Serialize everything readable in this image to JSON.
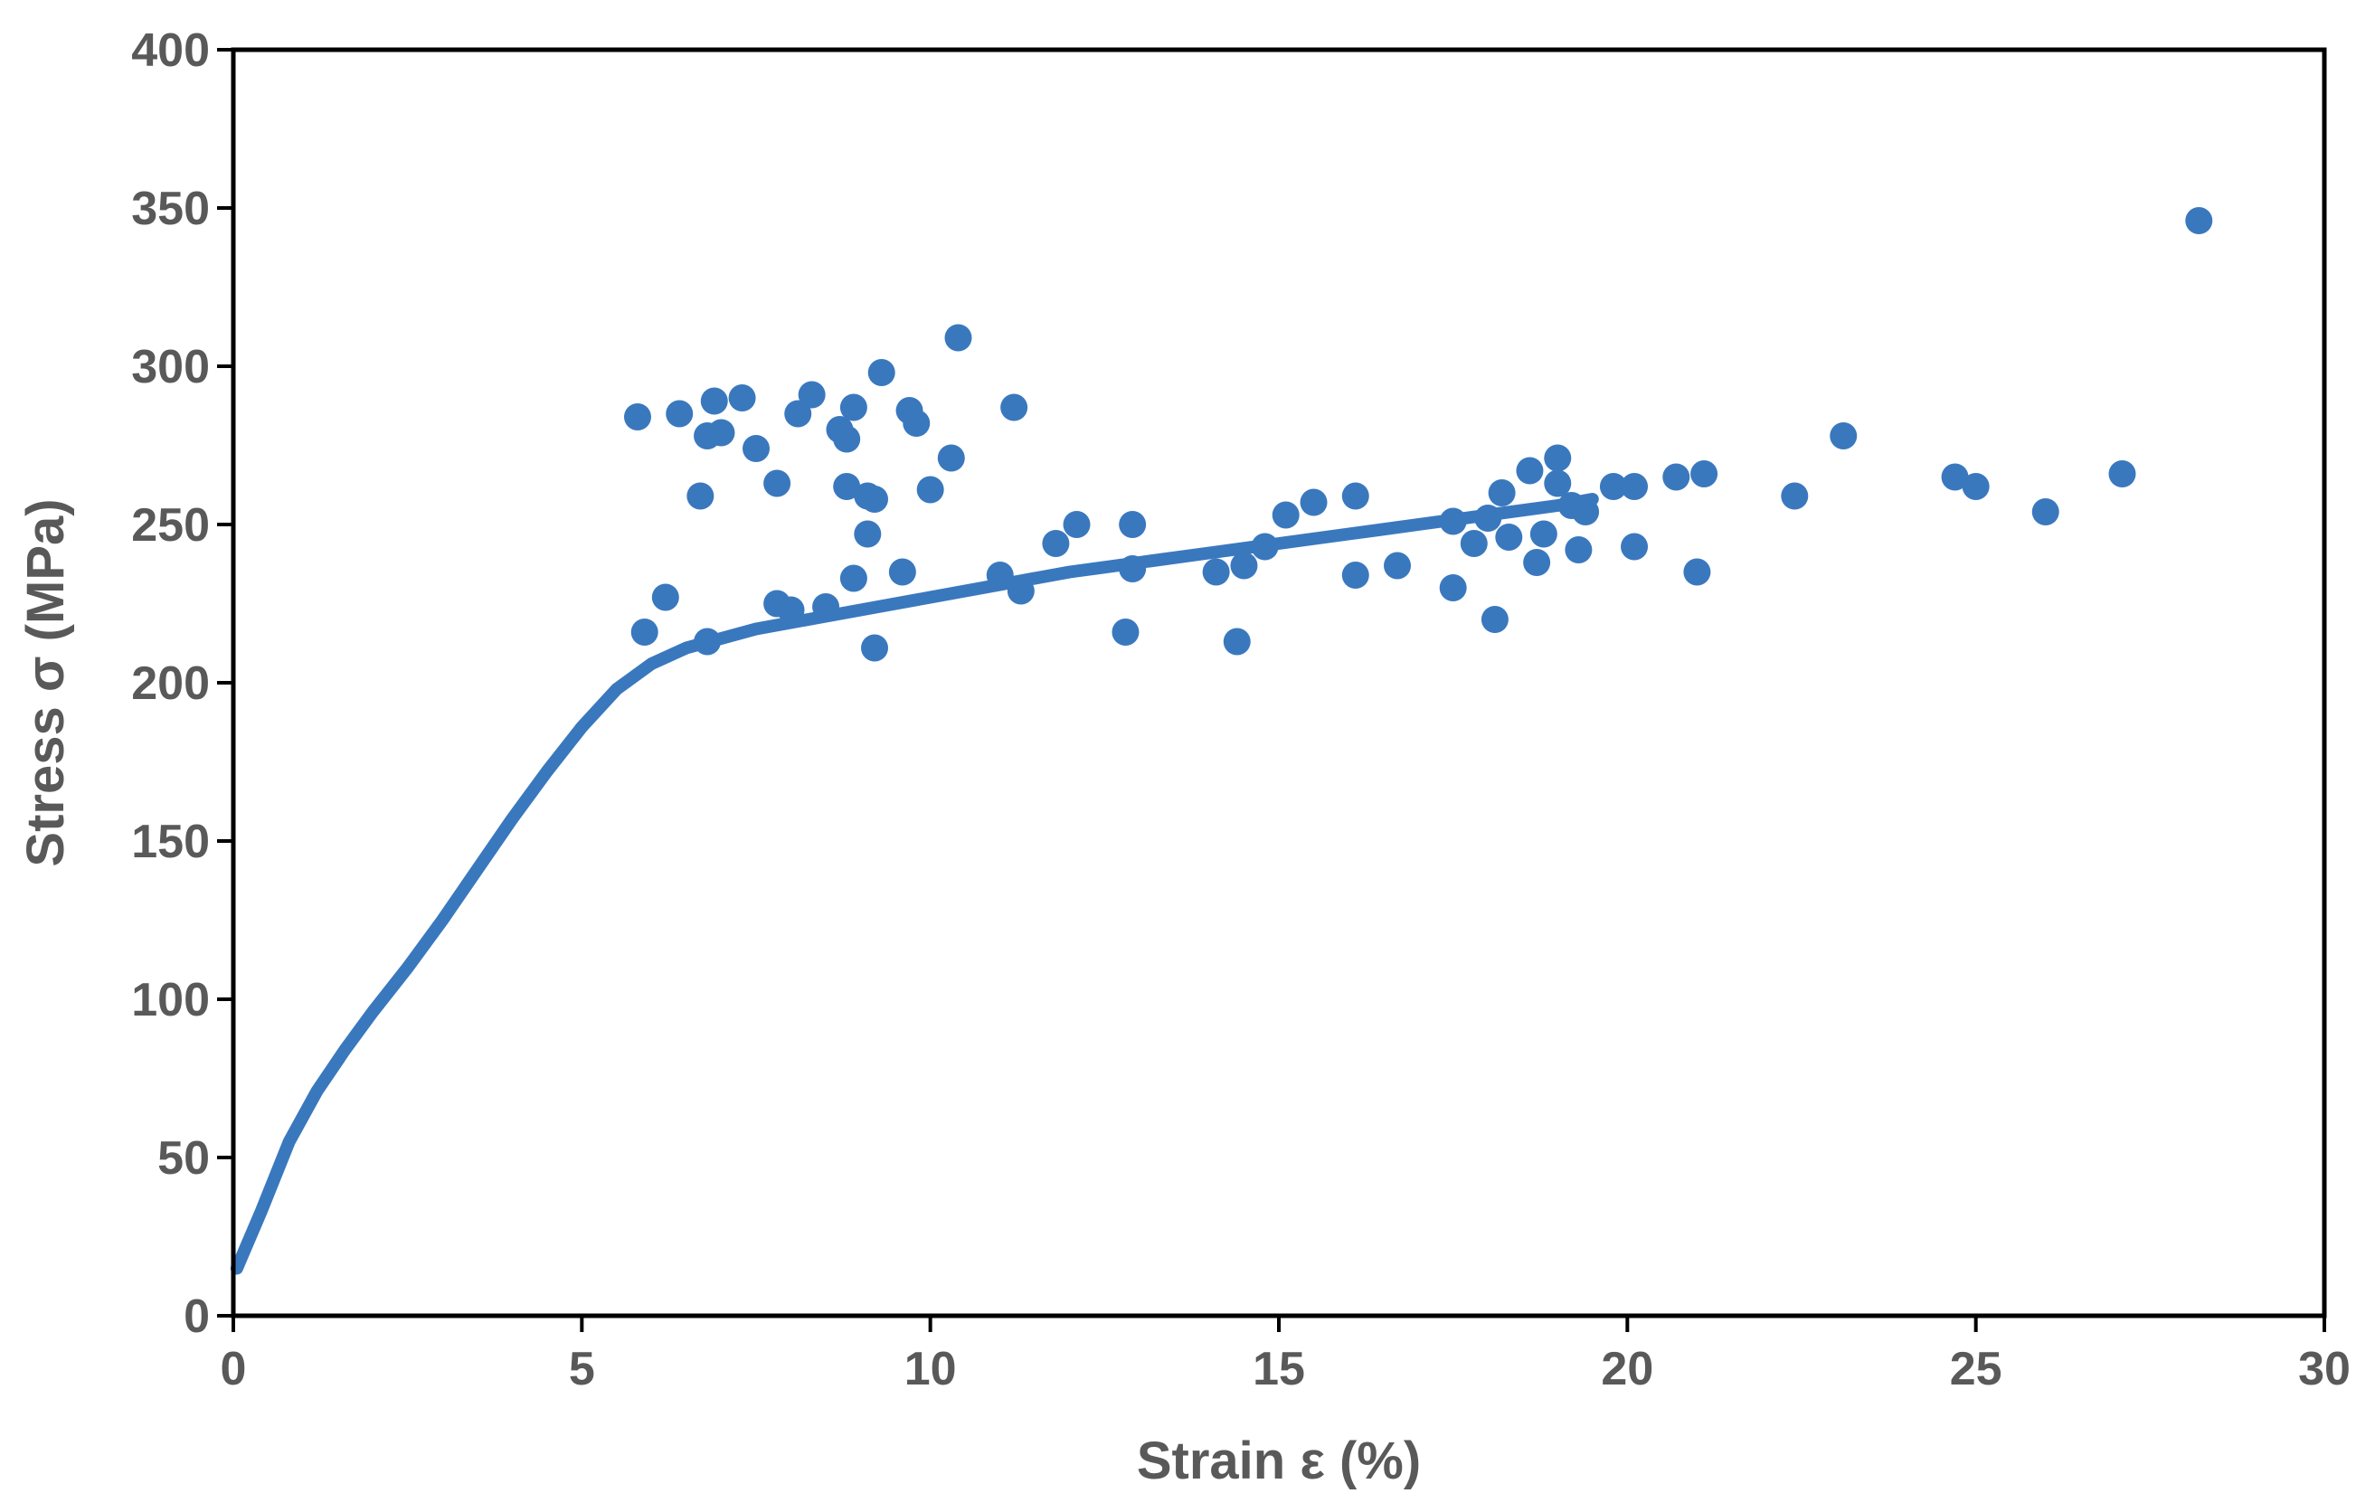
{
  "chart_data": {
    "type": "scatter",
    "title": "",
    "xlabel": "Strain ε (%)",
    "ylabel": "Stress σ (MPa)",
    "xlim": [
      0,
      30
    ],
    "ylim": [
      0,
      400
    ],
    "xticks": [
      0,
      5,
      10,
      15,
      20,
      25,
      30
    ],
    "yticks": [
      0,
      50,
      100,
      150,
      200,
      250,
      300,
      350,
      400
    ],
    "grid": false,
    "legend": "none",
    "color": "#3A78BE",
    "series": [
      {
        "kind": "line",
        "points": [
          [
            0.05,
            15
          ],
          [
            0.4,
            33
          ],
          [
            0.8,
            55
          ],
          [
            1.2,
            71
          ],
          [
            1.6,
            84
          ],
          [
            2.0,
            96
          ],
          [
            2.5,
            110
          ],
          [
            3.0,
            125
          ],
          [
            3.5,
            141
          ],
          [
            4.0,
            157
          ],
          [
            4.5,
            172
          ],
          [
            5.0,
            186
          ],
          [
            5.5,
            198
          ],
          [
            6.0,
            206
          ],
          [
            6.5,
            211
          ],
          [
            7.0,
            214
          ],
          [
            7.5,
            217
          ],
          [
            8.0,
            219
          ],
          [
            8.5,
            221
          ],
          [
            9.0,
            223
          ],
          [
            10.0,
            227
          ],
          [
            11.0,
            231
          ],
          [
            12.0,
            235
          ],
          [
            13.0,
            238
          ],
          [
            14.0,
            241
          ],
          [
            15.0,
            244
          ],
          [
            16.0,
            247
          ],
          [
            17.0,
            250
          ],
          [
            18.0,
            253
          ],
          [
            19.0,
            256
          ],
          [
            19.5,
            258
          ]
        ]
      },
      {
        "kind": "points",
        "points": [
          [
            5.8,
            284
          ],
          [
            6.4,
            285
          ],
          [
            6.9,
            289
          ],
          [
            7.3,
            290
          ],
          [
            6.8,
            278
          ],
          [
            7.0,
            279
          ],
          [
            7.5,
            274
          ],
          [
            6.7,
            259
          ],
          [
            7.8,
            263
          ],
          [
            8.1,
            285
          ],
          [
            8.3,
            291
          ],
          [
            8.9,
            287
          ],
          [
            8.7,
            280
          ],
          [
            8.8,
            277
          ],
          [
            9.3,
            298
          ],
          [
            9.7,
            286
          ],
          [
            9.8,
            282
          ],
          [
            10.4,
            309
          ],
          [
            10.3,
            271
          ],
          [
            11.2,
            287
          ],
          [
            8.8,
            262
          ],
          [
            9.1,
            259
          ],
          [
            9.2,
            258
          ],
          [
            10.0,
            261
          ],
          [
            9.1,
            247
          ],
          [
            5.9,
            216
          ],
          [
            6.2,
            227
          ],
          [
            6.8,
            213
          ],
          [
            7.8,
            225
          ],
          [
            8.0,
            223
          ],
          [
            8.5,
            224
          ],
          [
            8.9,
            233
          ],
          [
            9.2,
            211
          ],
          [
            9.6,
            235
          ],
          [
            11.0,
            234
          ],
          [
            11.3,
            229
          ],
          [
            11.8,
            244
          ],
          [
            12.1,
            250
          ],
          [
            12.8,
            216
          ],
          [
            12.9,
            236
          ],
          [
            12.9,
            250
          ],
          [
            14.1,
            235
          ],
          [
            14.4,
            213
          ],
          [
            14.5,
            237
          ],
          [
            14.8,
            243
          ],
          [
            15.1,
            253
          ],
          [
            15.5,
            257
          ],
          [
            16.1,
            259
          ],
          [
            16.1,
            234
          ],
          [
            16.7,
            237
          ],
          [
            17.5,
            251
          ],
          [
            17.5,
            230
          ],
          [
            17.8,
            244
          ],
          [
            18.0,
            252
          ],
          [
            18.1,
            220
          ],
          [
            18.2,
            260
          ],
          [
            18.3,
            246
          ],
          [
            18.6,
            267
          ],
          [
            18.7,
            238
          ],
          [
            18.8,
            247
          ],
          [
            19.0,
            263
          ],
          [
            19.0,
            271
          ],
          [
            19.2,
            256
          ],
          [
            19.3,
            242
          ],
          [
            19.4,
            254
          ],
          [
            19.8,
            262
          ],
          [
            20.1,
            262
          ],
          [
            20.1,
            243
          ],
          [
            20.7,
            265
          ],
          [
            21.0,
            235
          ],
          [
            21.1,
            266
          ],
          [
            22.4,
            259
          ],
          [
            23.1,
            278
          ],
          [
            24.7,
            265
          ],
          [
            25.0,
            262
          ],
          [
            26.0,
            254
          ],
          [
            27.1,
            266
          ],
          [
            28.2,
            346
          ]
        ]
      }
    ]
  }
}
